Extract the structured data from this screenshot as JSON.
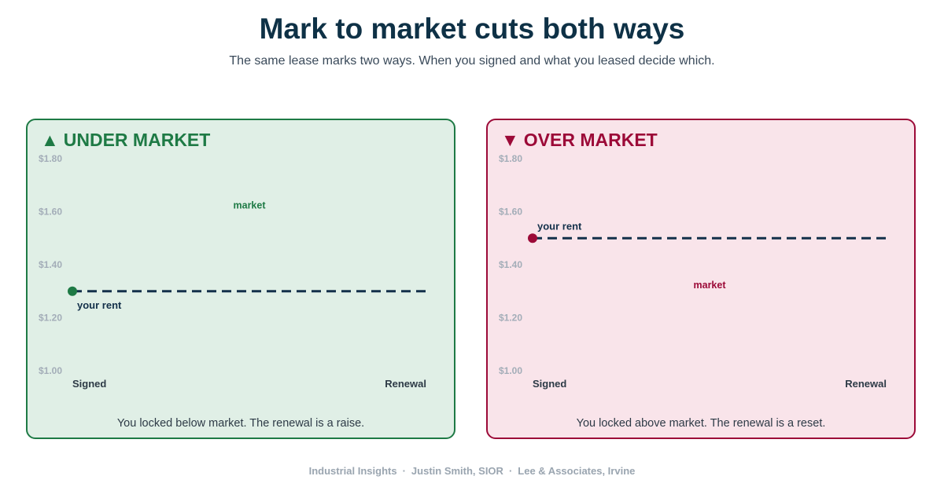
{
  "title": "Mark to market cuts both ways",
  "subtitle": "The same lease marks two ways. When you signed and what you leased decide which.",
  "footer": {
    "parts": [
      "Industrial Insights",
      "Justin Smith, SIOR",
      "Lee & Associates, Irvine"
    ],
    "separator": "·"
  },
  "colors": {
    "under_accent": "#1e7a45",
    "under_bg": "#e0efe6",
    "over_accent": "#9c0a38",
    "over_bg": "#f9e4ea",
    "rent_line": "#13304a",
    "axis_label": "#a3adb8"
  },
  "chart_data": [
    {
      "type": "line",
      "glyph": "▲",
      "heading": "UNDER MARKET",
      "y_ticks": [
        "$1.80",
        "$1.60",
        "$1.40",
        "$1.20",
        "$1.00"
      ],
      "ylim": [
        1.0,
        1.8
      ],
      "categories": [
        "Signed",
        "Renewal"
      ],
      "series": [
        {
          "name": "your rent",
          "values": [
            1.3,
            1.3
          ]
        },
        {
          "name": "market",
          "values": [
            1.6,
            1.6
          ]
        }
      ],
      "caption": "You locked below market. The renewal is a raise."
    },
    {
      "type": "line",
      "glyph": "▼",
      "heading": "OVER MARKET",
      "y_ticks": [
        "$1.80",
        "$1.60",
        "$1.40",
        "$1.20",
        "$1.00"
      ],
      "ylim": [
        1.0,
        1.8
      ],
      "categories": [
        "Signed",
        "Renewal"
      ],
      "series": [
        {
          "name": "your rent",
          "values": [
            1.5,
            1.5
          ]
        },
        {
          "name": "market",
          "values": [
            1.3,
            1.3
          ]
        }
      ],
      "caption": "You locked above market. The renewal is a reset."
    }
  ]
}
